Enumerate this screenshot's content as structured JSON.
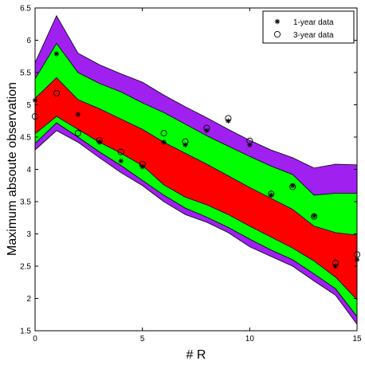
{
  "chart_data": {
    "type": "area",
    "title": "",
    "xlabel": "# R",
    "ylabel": "Maximum absoute observation",
    "xlim": [
      0,
      15
    ],
    "ylim": [
      1.5,
      6.5
    ],
    "x_ticks": [
      "0",
      "5",
      "10",
      "15"
    ],
    "y_ticks": [
      "1.5",
      "2",
      "2.5",
      "3",
      "3.5",
      "4",
      "4.5",
      "5",
      "5.5",
      "6",
      "6.5"
    ],
    "x": [
      0,
      1,
      2,
      3,
      4,
      5,
      6,
      7,
      8,
      9,
      10,
      11,
      12,
      13,
      14,
      15
    ],
    "bands": [
      {
        "color": "#a020f0",
        "upper": [
          5.65,
          6.38,
          5.8,
          5.62,
          5.48,
          5.35,
          5.15,
          4.97,
          4.8,
          4.62,
          4.45,
          4.3,
          4.18,
          4.02,
          4.08,
          4.07
        ],
        "lower": [
          4.3,
          4.6,
          4.42,
          4.18,
          3.95,
          3.75,
          3.5,
          3.3,
          3.18,
          3.02,
          2.8,
          2.65,
          2.5,
          2.27,
          2.05,
          1.6
        ]
      },
      {
        "color": "#00ff00",
        "upper": [
          5.4,
          5.95,
          5.5,
          5.33,
          5.2,
          5.03,
          4.88,
          4.7,
          4.52,
          4.36,
          4.2,
          4.05,
          3.92,
          3.6,
          3.63,
          3.63
        ],
        "lower": [
          4.4,
          4.72,
          4.5,
          4.27,
          4.06,
          3.83,
          3.6,
          3.4,
          3.26,
          3.1,
          2.92,
          2.75,
          2.6,
          2.38,
          2.15,
          1.72
        ]
      },
      {
        "color": "#ff0000",
        "upper": [
          5.1,
          5.42,
          5.08,
          4.94,
          4.78,
          4.62,
          4.42,
          4.25,
          4.08,
          3.9,
          3.72,
          3.55,
          3.38,
          3.12,
          3.02,
          2.98
        ],
        "lower": [
          4.55,
          4.82,
          4.62,
          4.42,
          4.25,
          4.06,
          3.76,
          3.57,
          3.45,
          3.3,
          3.12,
          2.95,
          2.78,
          2.58,
          2.33,
          1.98
        ]
      }
    ],
    "series": [
      {
        "name": "1-year data",
        "marker": "asterisk",
        "values": [
          5.07,
          5.79,
          4.85,
          4.42,
          4.13,
          4.04,
          4.42,
          4.38,
          4.6,
          4.75,
          4.38,
          3.6,
          3.75,
          3.28,
          2.5,
          2.6
        ]
      },
      {
        "name": "3-year data",
        "marker": "circle",
        "values": [
          4.82,
          5.18,
          4.56,
          4.45,
          4.27,
          4.08,
          4.56,
          4.43,
          4.64,
          4.79,
          4.44,
          3.62,
          3.73,
          3.27,
          2.55,
          2.68
        ]
      }
    ],
    "legend_position": "top-right",
    "grid": false
  }
}
